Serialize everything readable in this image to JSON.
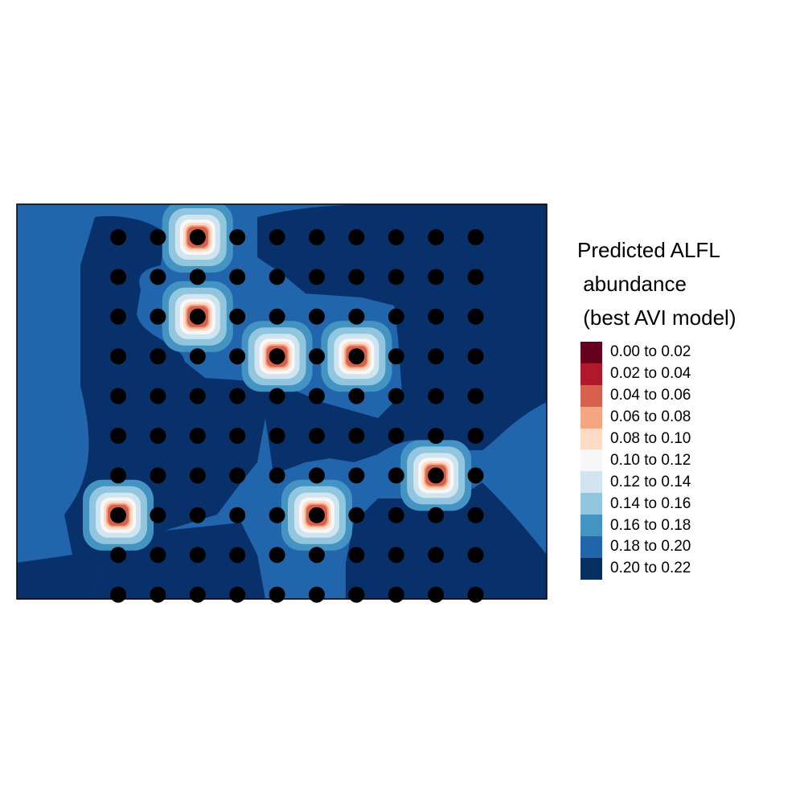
{
  "legend": {
    "title_lines": [
      "Predicted ALFL",
      " abundance",
      " (best AVI model)"
    ],
    "classes": [
      {
        "label": "0.00 to 0.02",
        "color": "#67001f"
      },
      {
        "label": "0.02 to 0.04",
        "color": "#b2182b"
      },
      {
        "label": "0.04 to 0.06",
        "color": "#d6604d"
      },
      {
        "label": "0.06 to 0.08",
        "color": "#f4a582"
      },
      {
        "label": "0.08 to 0.10",
        "color": "#fddbc7"
      },
      {
        "label": "0.10 to 0.12",
        "color": "#f7f7f7"
      },
      {
        "label": "0.12 to 0.14",
        "color": "#d1e5f0"
      },
      {
        "label": "0.14 to 0.16",
        "color": "#92c5de"
      },
      {
        "label": "0.16 to 0.18",
        "color": "#4393c3"
      },
      {
        "label": "0.18 to 0.20",
        "color": "#2166ac"
      },
      {
        "label": "0.20 to 0.22",
        "color": "#053061"
      }
    ]
  },
  "map": {
    "background_color": "#2166ac",
    "high_color": "#08306b",
    "point_color": "#000000",
    "grid_columns": 10,
    "grid_rows": 10,
    "low_abundance_sites": [
      {
        "col": 3,
        "row": 1
      },
      {
        "col": 3,
        "row": 3
      },
      {
        "col": 5,
        "row": 4
      },
      {
        "col": 7,
        "row": 4
      },
      {
        "col": 9,
        "row": 7
      },
      {
        "col": 1,
        "row": 8
      },
      {
        "col": 6,
        "row": 8
      }
    ]
  }
}
